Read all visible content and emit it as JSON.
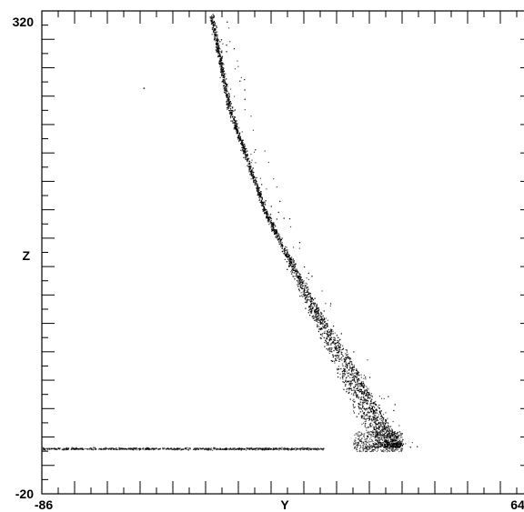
{
  "chart_data": {
    "type": "scatter",
    "title": "",
    "xlabel": "Y",
    "ylabel": "Z",
    "xlim": [
      -86,
      64
    ],
    "ylim": [
      -20,
      320
    ],
    "x_tick_labels": [
      "-86",
      "64"
    ],
    "y_tick_labels": [
      "320",
      "-20"
    ],
    "grid": false,
    "legend": "none",
    "marker_color": "#000000",
    "series": [
      {
        "description_points": [
          {
            "x": -86,
            "y": 12
          },
          {
            "x": -40,
            "y": 12
          },
          {
            "x": 0,
            "y": 12.5
          },
          {
            "x": 12,
            "y": 13
          },
          {
            "x": 15,
            "y": 16
          },
          {
            "x": 10,
            "y": 35
          },
          {
            "x": 2,
            "y": 75
          },
          {
            "x": -8,
            "y": 125
          },
          {
            "x": -18,
            "y": 180
          },
          {
            "x": -28,
            "y": 250
          },
          {
            "x": -35,
            "y": 318
          }
        ],
        "upper_edge_points": [
          {
            "x": 24,
            "y": 10
          },
          {
            "x": 23,
            "y": 18
          },
          {
            "x": 17,
            "y": 40
          },
          {
            "x": 8,
            "y": 75
          },
          {
            "x": -4,
            "y": 120
          },
          {
            "x": -18,
            "y": 180
          },
          {
            "x": -29,
            "y": 250
          },
          {
            "x": -34,
            "y": 318
          }
        ],
        "outliers": [
          {
            "x": -55,
            "y": 266
          }
        ]
      }
    ]
  }
}
